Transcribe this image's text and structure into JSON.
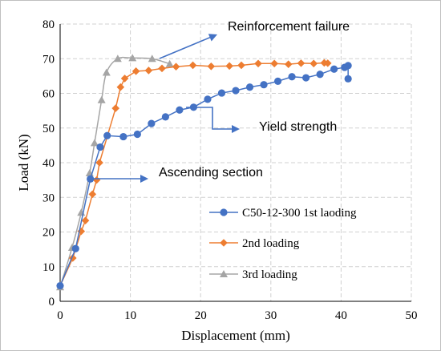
{
  "chart_data": {
    "type": "line",
    "xlabel": "Displacement (mm)",
    "ylabel": "Load (kN)",
    "xlim": [
      0,
      50
    ],
    "ylim": [
      0,
      80
    ],
    "xticks": [
      "0",
      "10",
      "20",
      "30",
      "40",
      "50"
    ],
    "yticks": [
      "0",
      "10",
      "20",
      "30",
      "40",
      "50",
      "60",
      "70",
      "80"
    ],
    "grid": true,
    "grid_style": "dashed",
    "legend_position": "right",
    "series": [
      {
        "name": "C50-12-300 1st laoding",
        "color": "#4472c4",
        "marker": "circle",
        "smooth": false,
        "x": [
          0,
          2.2,
          4.3,
          5.7,
          6.7,
          9,
          11,
          13,
          15,
          17,
          19,
          21,
          23,
          25,
          27,
          29,
          31,
          33,
          35,
          37,
          39,
          40.5,
          41,
          41
        ],
        "y": [
          4.5,
          15.2,
          35.3,
          44.5,
          47.8,
          47.5,
          48.2,
          51.3,
          53.2,
          55.2,
          56,
          58.3,
          60.1,
          60.8,
          61.8,
          62.5,
          63.5,
          64.8,
          64.5,
          65.5,
          67,
          67.5,
          68,
          64.2
        ]
      },
      {
        "name": "2nd loading",
        "color": "#ed7d31",
        "marker": "diamond",
        "smooth": false,
        "x": [
          0,
          1.8,
          3,
          3.6,
          4.6,
          5.2,
          5.6,
          7.9,
          8.6,
          9.2,
          10.8,
          12.6,
          14.5,
          16.5,
          18.9,
          21.5,
          24.1,
          25.8,
          28.2,
          30.5,
          32.5,
          34.3,
          36.1,
          37.6,
          38.1
        ],
        "y": [
          4.5,
          12.5,
          20.2,
          23.3,
          30.9,
          35,
          40,
          55.7,
          61.8,
          64.3,
          66.4,
          66.6,
          67.2,
          67.7,
          68.1,
          67.8,
          67.9,
          68.1,
          68.6,
          68.6,
          68.4,
          68.7,
          68.6,
          68.8,
          68.7
        ]
      },
      {
        "name": "3rd loading",
        "color": "#a5a5a5",
        "marker": "triangle",
        "smooth": true,
        "x": [
          0,
          1.7,
          3,
          4.2,
          4.9,
          5.9,
          6.6,
          8.2,
          10.3,
          13.1,
          15.6
        ],
        "y": [
          4.1,
          15.5,
          25.6,
          37,
          45.7,
          58.1,
          66,
          70,
          70.2,
          70,
          68.5
        ]
      }
    ],
    "annotations": [
      {
        "text": "Reinforcement failure"
      },
      {
        "text": "Yield strength"
      },
      {
        "text": "Ascending section"
      }
    ],
    "arrow_color": "#4472c4"
  }
}
